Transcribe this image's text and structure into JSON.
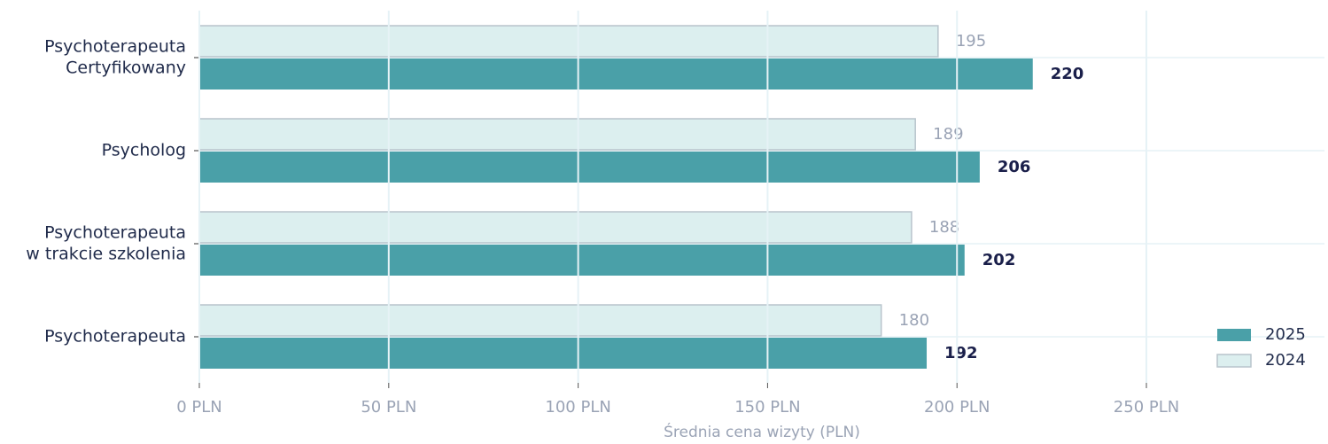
{
  "chart_data": {
    "type": "barh",
    "xlabel": "Średnia cena wizyty (PLN)",
    "categories": [
      [
        "Psychoterapeuta",
        "Certyfikowany"
      ],
      [
        "Psycholog"
      ],
      [
        "Psychoterapeuta",
        "w trakcie szkolenia"
      ],
      [
        "Psychoterapeuta"
      ]
    ],
    "series": [
      {
        "name": "2025",
        "color": "#4aa0a8",
        "values": [
          220,
          206,
          202,
          192
        ]
      },
      {
        "name": "2024",
        "color": "#dcefef",
        "values": [
          195,
          189,
          188,
          180
        ]
      }
    ],
    "xlim": [
      0,
      297
    ],
    "xticks": [
      {
        "value": 0,
        "label": "0 PLN"
      },
      {
        "value": 50,
        "label": "50 PLN"
      },
      {
        "value": 100,
        "label": "100 PLN"
      },
      {
        "value": 150,
        "label": "150 PLN"
      },
      {
        "value": 200,
        "label": "200 PLN"
      },
      {
        "value": 250,
        "label": "250 PLN"
      }
    ],
    "grid": true,
    "legend": "lower right"
  }
}
